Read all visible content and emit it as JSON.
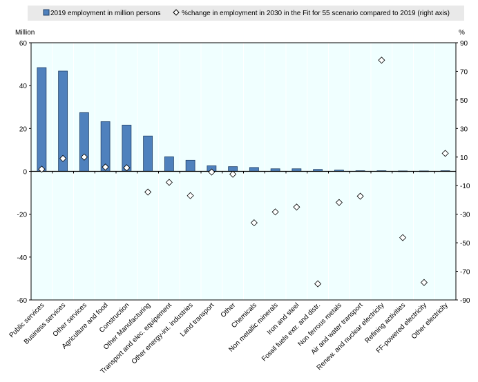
{
  "chart_data": {
    "type": "bar",
    "legend": [
      {
        "label": "2019 employment in million persons",
        "marker": "bar",
        "color": "#4f81bd"
      },
      {
        "label": "%change in employment in 2030 in the Fit for 55 scenario compared to 2019 (right axis)",
        "marker": "diamond",
        "color": "#ffffff"
      }
    ],
    "legend_placement": "top",
    "ylabel_left": "Million",
    "ylabel_right": "%",
    "ylim_left": [
      -60,
      60
    ],
    "ylim_right": [
      -90,
      90
    ],
    "yticks_left": [
      60,
      40,
      20,
      0,
      -20,
      -40,
      -60
    ],
    "yticks_right": [
      90,
      70,
      50,
      30,
      10,
      -10,
      -30,
      -50,
      -70,
      -90
    ],
    "categories": [
      "Public services",
      "Business services",
      "Other services",
      "Agriculture and food",
      "Construction",
      "Other Manufacturing",
      "Transport and elec. equipement",
      "Other energy-int. industries",
      "Land transport",
      "Other",
      "Chemicals",
      "Non metallic minerals",
      "Iron and steel",
      "Fossil fuels extr. and distr.",
      "Non ferrous metals",
      "Air and water transport",
      "Renew. and nuclear electricity",
      "Refining activities",
      "FF-powered electricity",
      "Other electricity"
    ],
    "series": [
      {
        "name": "2019 employment in million persons",
        "axis": "left",
        "type": "bar",
        "values": [
          48.4,
          46.8,
          27.4,
          23.2,
          21.6,
          16.5,
          6.8,
          5.2,
          2.6,
          2.2,
          1.8,
          1.2,
          1.2,
          0.9,
          0.6,
          0.3,
          0.3,
          0.2,
          0.2,
          0.3
        ]
      },
      {
        "name": "%change in employment in 2030 in the Fit for 55 scenario compared to 2019 (right axis)",
        "axis": "right",
        "type": "scatter",
        "values": [
          1.5,
          9,
          10,
          3,
          2.5,
          -14.5,
          -7.7,
          -17,
          -0.5,
          -2,
          -36,
          -28.4,
          -25,
          -78.7,
          -21.8,
          -17.4,
          77.8,
          -46.4,
          -77.8,
          12.6
        ]
      }
    ],
    "colors": {
      "bar": "#4f81bd",
      "plot_bg": "#f0ffff",
      "legend_bg": "#e9e9e9"
    }
  }
}
